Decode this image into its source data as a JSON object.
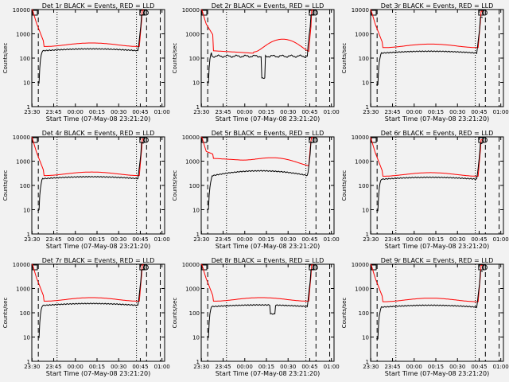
{
  "colors": {
    "events": "#000000",
    "lld": "#ff0000",
    "background": "#f2f2f2"
  },
  "chart_data": [
    {
      "type": "line",
      "title": "Det 1r BLACK = Events, RED = LLD",
      "xlabel": "Start Time (07-May-08 23:21:20)",
      "ylabel": "Counts/sec",
      "xticks": [
        "23:30",
        "23:45",
        "00:00",
        "00:15",
        "00:30",
        "00:45",
        "01:00"
      ],
      "yticks": [
        "1",
        "10",
        "100",
        "1000",
        "10000"
      ],
      "ylim": [
        1,
        10000
      ],
      "ylog": true,
      "box_markers": true,
      "series": [
        {
          "color": "red",
          "variant": "a",
          "scale": 1.0
        },
        {
          "color": "black",
          "variant": "a",
          "scale": 1.0
        }
      ]
    },
    {
      "type": "line",
      "title": "Det 2r BLACK = Events, RED = LLD",
      "xlabel": "Start Time (07-May-08 23:21:20)",
      "ylabel": "Counts/sec",
      "xticks": [
        "23:30",
        "23:45",
        "00:00",
        "00:15",
        "00:30",
        "00:45",
        "01:00"
      ],
      "yticks": [
        "1",
        "10",
        "100",
        "1000",
        "10000"
      ],
      "ylim": [
        1,
        10000
      ],
      "ylog": true,
      "box_markers": true,
      "series": [
        {
          "color": "red",
          "variant": "b",
          "scale": 1.0
        },
        {
          "color": "black",
          "variant": "b",
          "scale": 1.0
        }
      ]
    },
    {
      "type": "line",
      "title": "Det 3r BLACK = Events, RED = LLD",
      "xlabel": "Start Time (07-May-08 23:21:20)",
      "ylabel": "Counts/sec",
      "xticks": [
        "23:30",
        "23:45",
        "00:00",
        "00:15",
        "00:30",
        "00:45",
        "01:00"
      ],
      "yticks": [
        "1",
        "10",
        "100",
        "1000",
        "10000"
      ],
      "ylim": [
        1,
        10000
      ],
      "ylog": true,
      "box_markers": true,
      "series": [
        {
          "color": "red",
          "variant": "a",
          "scale": 0.9
        },
        {
          "color": "black",
          "variant": "a",
          "scale": 0.8
        }
      ]
    },
    {
      "type": "line",
      "title": "Det 4r BLACK = Events, RED = LLD",
      "xlabel": "Start Time (07-May-08 23:21:20)",
      "ylabel": "Counts/sec",
      "xticks": [
        "23:30",
        "23:45",
        "00:00",
        "00:15",
        "00:30",
        "00:45",
        "01:00"
      ],
      "yticks": [
        "1",
        "10",
        "100",
        "1000",
        "10000"
      ],
      "ylim": [
        1,
        10000
      ],
      "ylog": true,
      "box_markers": true,
      "series": [
        {
          "color": "red",
          "variant": "a",
          "scale": 0.85
        },
        {
          "color": "black",
          "variant": "a",
          "scale": 0.95
        }
      ]
    },
    {
      "type": "line",
      "title": "Det 5r BLACK = Events, RED = LLD",
      "xlabel": "Start Time (07-May-08 23:21:20)",
      "ylabel": "Counts/sec",
      "xticks": [
        "23:30",
        "23:45",
        "00:00",
        "00:15",
        "00:30",
        "00:45",
        "01:00"
      ],
      "yticks": [
        "1",
        "10",
        "100",
        "1000",
        "10000"
      ],
      "ylim": [
        1,
        10000
      ],
      "ylog": true,
      "box_markers": true,
      "series": [
        {
          "color": "red",
          "variant": "c",
          "scale": 1.0
        },
        {
          "color": "black",
          "variant": "c",
          "scale": 1.0
        }
      ]
    },
    {
      "type": "line",
      "title": "Det 6r BLACK = Events, RED = LLD",
      "xlabel": "Start Time (07-May-08 23:21:20)",
      "ylabel": "Counts/sec",
      "xticks": [
        "23:30",
        "23:45",
        "00:00",
        "00:15",
        "00:30",
        "00:45",
        "01:00"
      ],
      "yticks": [
        "1",
        "10",
        "100",
        "1000",
        "10000"
      ],
      "ylim": [
        1,
        10000
      ],
      "ylog": true,
      "box_markers": true,
      "series": [
        {
          "color": "red",
          "variant": "a",
          "scale": 0.8
        },
        {
          "color": "black",
          "variant": "a",
          "scale": 0.9
        }
      ]
    },
    {
      "type": "line",
      "title": "Det 7r BLACK = Events, RED = LLD",
      "xlabel": "Start Time (07-May-08 23:21:20)",
      "ylabel": "Counts/sec",
      "xticks": [
        "23:30",
        "23:45",
        "00:00",
        "00:15",
        "00:30",
        "00:45",
        "01:00"
      ],
      "yticks": [
        "1",
        "10",
        "100",
        "1000",
        "10000"
      ],
      "ylim": [
        1,
        10000
      ],
      "ylog": true,
      "box_markers": true,
      "series": [
        {
          "color": "red",
          "variant": "a",
          "scale": 1.0
        },
        {
          "color": "black",
          "variant": "a",
          "scale": 1.0
        }
      ]
    },
    {
      "type": "line",
      "title": "Det 8r BLACK = Events, RED = LLD",
      "xlabel": "Start Time (07-May-08 23:21:20)",
      "ylabel": "Counts/sec",
      "xticks": [
        "23:30",
        "23:45",
        "00:00",
        "00:15",
        "00:30",
        "00:45",
        "01:00"
      ],
      "yticks": [
        "1",
        "10",
        "100",
        "1000",
        "10000"
      ],
      "ylim": [
        1,
        10000
      ],
      "ylog": true,
      "box_markers": true,
      "series": [
        {
          "color": "red",
          "variant": "d",
          "scale": 1.0
        },
        {
          "color": "black",
          "variant": "d",
          "scale": 1.0
        }
      ]
    },
    {
      "type": "line",
      "title": "Det 9r BLACK = Events, RED = LLD",
      "xlabel": "Start Time (07-May-08 23:21:20)",
      "ylabel": "Counts/sec",
      "xticks": [
        "23:30",
        "23:45",
        "00:00",
        "00:15",
        "00:30",
        "00:45",
        "01:00"
      ],
      "yticks": [
        "1",
        "10",
        "100",
        "1000",
        "10000"
      ],
      "ylim": [
        1,
        10000
      ],
      "ylog": true,
      "box_markers": true,
      "series": [
        {
          "color": "red",
          "variant": "a",
          "scale": 0.95
        },
        {
          "color": "black",
          "variant": "a",
          "scale": 0.85
        }
      ]
    }
  ]
}
